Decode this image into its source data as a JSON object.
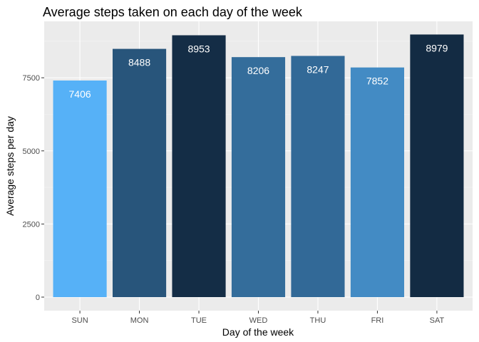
{
  "chart_data": {
    "type": "bar",
    "title": "Average steps taken on each day of the week",
    "xlabel": "Day of the week",
    "ylabel": "Average steps per day",
    "categories": [
      "SUN",
      "MON",
      "TUE",
      "WED",
      "THU",
      "FRI",
      "SAT"
    ],
    "values": [
      7406,
      8488,
      8953,
      8206,
      8247,
      7852,
      8979
    ],
    "data_labels": [
      "7406",
      "8488",
      "8953",
      "8206",
      "8247",
      "7852",
      "8979"
    ],
    "yticks": [
      0,
      2500,
      5000,
      7500
    ],
    "ytick_labels": [
      "0",
      "2500",
      "5000",
      "7500"
    ],
    "ylim": [
      0,
      9428
    ],
    "grid": true,
    "legend": "none",
    "colors": {
      "panel_background": "#ebebeb",
      "grid_major": "#ffffff",
      "grid_minor": "#f4f4f4",
      "bar_low": "#56b1f7",
      "bar_high": "#132b43"
    }
  }
}
